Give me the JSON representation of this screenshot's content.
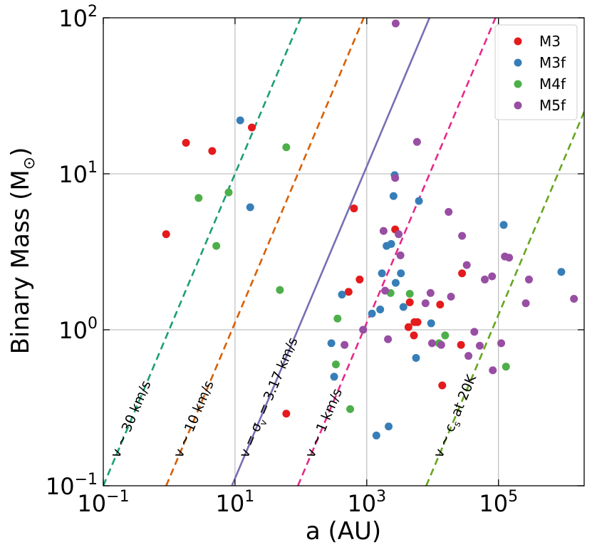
{
  "chart_data": {
    "type": "scatter",
    "title": "",
    "xlabel": "a (AU)",
    "ylabel_text": "Binary Mass (M",
    "ylabel_sub": "⊙",
    "ylabel_close": ")",
    "xscale": "log",
    "yscale": "log",
    "xlim": [
      0.1,
      2000000
    ],
    "ylim": [
      0.1,
      100
    ],
    "grid": true,
    "x_ticks": [
      {
        "value": 0.1,
        "base": "10",
        "exp": "−1"
      },
      {
        "value": 10,
        "base": "10",
        "exp": "1"
      },
      {
        "value": 1000,
        "base": "10",
        "exp": "3"
      },
      {
        "value": 100000,
        "base": "10",
        "exp": "5"
      }
    ],
    "y_ticks": [
      {
        "value": 0.1,
        "base": "10",
        "exp": "−1"
      },
      {
        "value": 1,
        "base": "10",
        "exp": "0"
      },
      {
        "value": 10,
        "base": "10",
        "exp": "1"
      },
      {
        "value": 100,
        "base": "10",
        "exp": "2"
      }
    ],
    "legend": {
      "position": "top-right",
      "entries": [
        {
          "label": "M3",
          "color": "#e41a1c"
        },
        {
          "label": "M3f",
          "color": "#377eb8"
        },
        {
          "label": "M4f",
          "color": "#4daf4a"
        },
        {
          "label": "M5f",
          "color": "#984ea3"
        }
      ]
    },
    "reference_lines": [
      {
        "name": "v30",
        "label": "v ~ 30 km/s",
        "color": "#1b9e77",
        "dash": true,
        "mass_at_1AU": 1.0
      },
      {
        "name": "v10",
        "label": "v ~ 10 km/s",
        "color": "#d95f02",
        "dash": true,
        "mass_at_1AU": 0.111
      },
      {
        "name": "vsigma",
        "label_parts": [
          "v = σ",
          "v",
          " = 3.17 km/s"
        ],
        "color": "#7570b3",
        "dash": false,
        "mass_at_1AU": 0.01115
      },
      {
        "name": "v1",
        "label": "v ~ 1 km/s",
        "color": "#e7298a",
        "dash": true,
        "mass_at_1AU": 0.00111
      },
      {
        "name": "vcs",
        "label_parts": [
          "v ~ c",
          "s",
          " at 20K"
        ],
        "color": "#66a61e",
        "dash": true,
        "mass_at_1AU": 1.25e-05
      }
    ],
    "series": [
      {
        "name": "M3",
        "color": "#e41a1c",
        "points": [
          [
            0.9,
            4.1
          ],
          [
            1.8,
            15.8
          ],
          [
            4.5,
            14.0
          ],
          [
            18,
            19.8
          ],
          [
            60,
            0.29
          ],
          [
            530,
            1.75
          ],
          [
            640,
            6.0
          ],
          [
            780,
            2.1
          ],
          [
            2700,
            4.4
          ],
          [
            4300,
            1.04
          ],
          [
            4500,
            1.5
          ],
          [
            5200,
            0.92
          ],
          [
            5300,
            1.12
          ],
          [
            5900,
            1.12
          ],
          [
            13000,
            1.45
          ],
          [
            14000,
            0.44
          ],
          [
            27000,
            0.8
          ],
          [
            28000,
            2.3
          ]
        ]
      },
      {
        "name": "M3f",
        "color": "#377eb8",
        "points": [
          [
            12,
            22.0
          ],
          [
            17,
            6.1
          ],
          [
            290,
            0.82
          ],
          [
            320,
            0.5
          ],
          [
            420,
            1.68
          ],
          [
            1200,
            1.27
          ],
          [
            1400,
            0.21
          ],
          [
            1600,
            1.35
          ],
          [
            1700,
            2.3
          ],
          [
            2000,
            3.45
          ],
          [
            2150,
            0.24
          ],
          [
            2350,
            3.55
          ],
          [
            2550,
            7.2
          ],
          [
            2650,
            9.8
          ],
          [
            2750,
            2.0
          ],
          [
            3300,
            2.3
          ],
          [
            3600,
            1.4
          ],
          [
            5600,
            0.66
          ],
          [
            6200,
            6.7
          ],
          [
            9500,
            1.1
          ],
          [
            120000,
            4.7
          ],
          [
            900000,
            2.35
          ]
        ]
      },
      {
        "name": "M4f",
        "color": "#4daf4a",
        "points": [
          [
            2.8,
            7.0
          ],
          [
            5.2,
            3.45
          ],
          [
            8,
            7.6
          ],
          [
            48,
            1.8
          ],
          [
            60,
            14.8
          ],
          [
            340,
            0.6
          ],
          [
            360,
            1.18
          ],
          [
            560,
            0.31
          ],
          [
            2300,
            1.72
          ],
          [
            4500,
            1.7
          ],
          [
            12500,
            0.82
          ],
          [
            15500,
            0.92
          ],
          [
            130000,
            0.58
          ]
        ]
      },
      {
        "name": "M5f",
        "color": "#984ea3",
        "points": [
          [
            460,
            0.8
          ],
          [
            880,
            1.0
          ],
          [
            1800,
            4.3
          ],
          [
            1900,
            1.78
          ],
          [
            2100,
            0.87
          ],
          [
            2700,
            9.4
          ],
          [
            2750,
            92.0
          ],
          [
            3050,
            4.1
          ],
          [
            3250,
            3.0
          ],
          [
            5800,
            16.0
          ],
          [
            7800,
            1.48
          ],
          [
            9300,
            1.72
          ],
          [
            9800,
            0.82
          ],
          [
            13500,
            0.8
          ],
          [
            17500,
            5.7
          ],
          [
            19000,
            1.63
          ],
          [
            28000,
            4.0
          ],
          [
            33000,
            2.6
          ],
          [
            35000,
            0.68
          ],
          [
            43000,
            0.97
          ],
          [
            52000,
            0.79
          ],
          [
            62000,
            2.1
          ],
          [
            80000,
            2.2
          ],
          [
            82000,
            0.55
          ],
          [
            110000,
            0.82
          ],
          [
            125000,
            2.95
          ],
          [
            145000,
            2.9
          ],
          [
            260000,
            1.48
          ],
          [
            290000,
            2.1
          ],
          [
            1400000,
            1.58
          ]
        ]
      }
    ]
  }
}
